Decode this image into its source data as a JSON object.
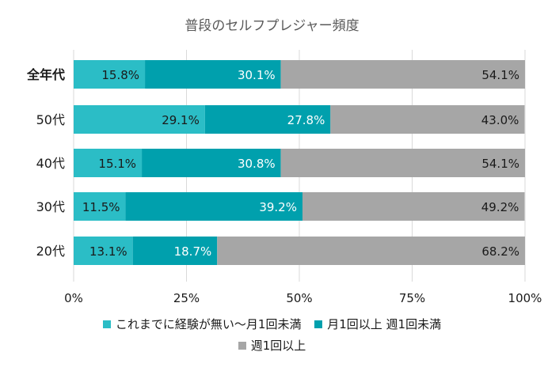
{
  "chart_data": {
    "type": "bar",
    "orientation": "horizontal",
    "stacked": true,
    "title": "普段のセルフプレジャー頻度",
    "categories": [
      "全年代",
      "50代",
      "40代",
      "30代",
      "20代"
    ],
    "series": [
      {
        "name": "これまでに経験が無い〜月1回未満",
        "color": "#2bbdc6",
        "values": [
          15.8,
          29.1,
          15.1,
          11.5,
          13.1
        ],
        "labels": [
          "15.8%",
          "29.1%",
          "15.1%",
          "11.5%",
          "13.1%"
        ],
        "label_color": "#1a1a1a"
      },
      {
        "name": "月1回以上 週1回未満",
        "color": "#00a0ad",
        "values": [
          30.1,
          27.8,
          30.8,
          39.2,
          18.7
        ],
        "labels": [
          "30.1%",
          "27.8%",
          "30.8%",
          "39.2%",
          "18.7%"
        ],
        "label_color": "#ffffff"
      },
      {
        "name": "週1回以上",
        "color": "#a6a6a6",
        "values": [
          54.1,
          43.0,
          54.1,
          49.2,
          68.2
        ],
        "labels": [
          "54.1%",
          "43.0%",
          "54.1%",
          "49.2%",
          "68.2%"
        ],
        "label_color": "#1a1a1a"
      }
    ],
    "x_ticks": [
      "0%",
      "25%",
      "50%",
      "75%",
      "100%"
    ],
    "x_tick_values": [
      0,
      25,
      50,
      75,
      100
    ],
    "xlim": [
      0,
      100
    ],
    "grid": true,
    "legend_position": "bottom"
  }
}
